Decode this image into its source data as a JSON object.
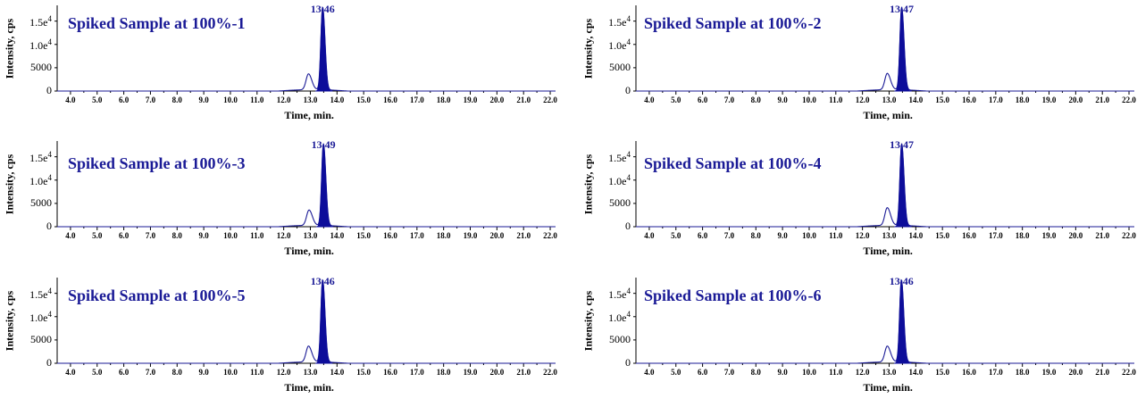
{
  "colors": {
    "trace": "#1a1a96",
    "fill": "#0d0d9a",
    "axis": "#000000",
    "baseline": "#6b6b6b"
  },
  "chart_data": [
    {
      "type": "line",
      "title": "Spiked Sample at 100%-1",
      "xlabel": "Time, min.",
      "ylabel": "Intensity, cps",
      "xlim": [
        3.5,
        22.2
      ],
      "ylim": [
        0,
        18000
      ],
      "x_ticks": [
        "4.0",
        "5.0",
        "6.0",
        "7.0",
        "8.0",
        "9.0",
        "10.0",
        "11.0",
        "12.0",
        "13.0",
        "14.0",
        "15.0",
        "16.0",
        "17.0",
        "18.0",
        "19.0",
        "20.0",
        "21.0",
        "22.0"
      ],
      "y_ticks": [
        {
          "value": 0,
          "label": "0"
        },
        {
          "value": 5000,
          "label": "5000"
        },
        {
          "value": 10000,
          "label": "1.0e",
          "exp": "4"
        },
        {
          "value": 15000,
          "label": "1.5e",
          "exp": "4"
        }
      ],
      "peak_label": "13.46",
      "series": [
        {
          "peak_rt": 13.46,
          "peak_height": 17800,
          "peak_sigma": 0.065,
          "filled": true
        },
        {
          "peak_rt": 12.93,
          "peak_height": 3400,
          "peak_sigma": 0.09,
          "filled": false
        }
      ]
    },
    {
      "type": "line",
      "title": "Spiked Sample at 100%-2",
      "xlabel": "Time, min.",
      "ylabel": "Intensity, cps",
      "xlim": [
        3.5,
        22.2
      ],
      "ylim": [
        0,
        18000
      ],
      "x_ticks": [
        "4.0",
        "5.0",
        "6.0",
        "7.0",
        "8.0",
        "9.0",
        "10.0",
        "11.0",
        "12.0",
        "13.0",
        "14.0",
        "15.0",
        "16.0",
        "17.0",
        "18.0",
        "19.0",
        "20.0",
        "21.0",
        "22.0"
      ],
      "y_ticks": [
        {
          "value": 0,
          "label": "0"
        },
        {
          "value": 5000,
          "label": "5000"
        },
        {
          "value": 10000,
          "label": "1.0e",
          "exp": "4"
        },
        {
          "value": 15000,
          "label": "1.5e",
          "exp": "4"
        }
      ],
      "peak_label": "13.47",
      "series": [
        {
          "peak_rt": 13.47,
          "peak_height": 17800,
          "peak_sigma": 0.065,
          "filled": true
        },
        {
          "peak_rt": 12.93,
          "peak_height": 3500,
          "peak_sigma": 0.09,
          "filled": false
        }
      ]
    },
    {
      "type": "line",
      "title": "Spiked Sample at 100%-3",
      "xlabel": "Time, min.",
      "ylabel": "Intensity, cps",
      "xlim": [
        3.5,
        22.2
      ],
      "ylim": [
        0,
        18000
      ],
      "x_ticks": [
        "4.0",
        "5.0",
        "6.0",
        "7.0",
        "8.0",
        "9.0",
        "10.0",
        "11.0",
        "12.0",
        "13.0",
        "14.0",
        "15.0",
        "16.0",
        "17.0",
        "18.0",
        "19.0",
        "20.0",
        "21.0",
        "22.0"
      ],
      "y_ticks": [
        {
          "value": 0,
          "label": "0"
        },
        {
          "value": 5000,
          "label": "5000"
        },
        {
          "value": 10000,
          "label": "1.0e",
          "exp": "4"
        },
        {
          "value": 15000,
          "label": "1.5e",
          "exp": "4"
        }
      ],
      "peak_label": "13.49",
      "series": [
        {
          "peak_rt": 13.49,
          "peak_height": 17600,
          "peak_sigma": 0.065,
          "filled": true
        },
        {
          "peak_rt": 12.95,
          "peak_height": 3300,
          "peak_sigma": 0.09,
          "filled": false
        }
      ]
    },
    {
      "type": "line",
      "title": "Spiked Sample at 100%-4",
      "xlabel": "Time, min.",
      "ylabel": "Intensity, cps",
      "xlim": [
        3.5,
        22.2
      ],
      "ylim": [
        0,
        18000
      ],
      "x_ticks": [
        "4.0",
        "5.0",
        "6.0",
        "7.0",
        "8.0",
        "9.0",
        "10.0",
        "11.0",
        "12.0",
        "13.0",
        "14.0",
        "15.0",
        "16.0",
        "17.0",
        "18.0",
        "19.0",
        "20.0",
        "21.0",
        "22.0"
      ],
      "y_ticks": [
        {
          "value": 0,
          "label": "0"
        },
        {
          "value": 5000,
          "label": "5000"
        },
        {
          "value": 10000,
          "label": "1.0e",
          "exp": "4"
        },
        {
          "value": 15000,
          "label": "1.5e",
          "exp": "4"
        }
      ],
      "peak_label": "13.47",
      "series": [
        {
          "peak_rt": 13.47,
          "peak_height": 17600,
          "peak_sigma": 0.065,
          "filled": true
        },
        {
          "peak_rt": 12.93,
          "peak_height": 3800,
          "peak_sigma": 0.09,
          "filled": false
        }
      ]
    },
    {
      "type": "line",
      "title": "Spiked Sample at 100%-5",
      "xlabel": "Time, min.",
      "ylabel": "Intensity, cps",
      "xlim": [
        3.5,
        22.2
      ],
      "ylim": [
        0,
        18000
      ],
      "x_ticks": [
        "4.0",
        "5.0",
        "6.0",
        "7.0",
        "8.0",
        "9.0",
        "10.0",
        "11.0",
        "12.0",
        "13.0",
        "14.0",
        "15.0",
        "16.0",
        "17.0",
        "18.0",
        "19.0",
        "20.0",
        "21.0",
        "22.0"
      ],
      "y_ticks": [
        {
          "value": 0,
          "label": "0"
        },
        {
          "value": 5000,
          "label": "5000"
        },
        {
          "value": 10000,
          "label": "1.0e",
          "exp": "4"
        },
        {
          "value": 15000,
          "label": "1.5e",
          "exp": "4"
        }
      ],
      "peak_label": "13.46",
      "series": [
        {
          "peak_rt": 13.46,
          "peak_height": 17700,
          "peak_sigma": 0.065,
          "filled": true
        },
        {
          "peak_rt": 12.93,
          "peak_height": 3400,
          "peak_sigma": 0.09,
          "filled": false
        }
      ]
    },
    {
      "type": "line",
      "title": "Spiked Sample at 100%-6",
      "xlabel": "Time, min.",
      "ylabel": "Intensity, cps",
      "xlim": [
        3.5,
        22.2
      ],
      "ylim": [
        0,
        18000
      ],
      "x_ticks": [
        "4.0",
        "5.0",
        "6.0",
        "7.0",
        "8.0",
        "9.0",
        "10.0",
        "11.0",
        "12.0",
        "13.0",
        "14.0",
        "15.0",
        "16.0",
        "17.0",
        "18.0",
        "19.0",
        "20.0",
        "21.0",
        "22.0"
      ],
      "y_ticks": [
        {
          "value": 0,
          "label": "0"
        },
        {
          "value": 5000,
          "label": "5000"
        },
        {
          "value": 10000,
          "label": "1.0e",
          "exp": "4"
        },
        {
          "value": 15000,
          "label": "1.5e",
          "exp": "4"
        }
      ],
      "peak_label": "13.46",
      "series": [
        {
          "peak_rt": 13.46,
          "peak_height": 17700,
          "peak_sigma": 0.065,
          "filled": true
        },
        {
          "peak_rt": 12.93,
          "peak_height": 3400,
          "peak_sigma": 0.09,
          "filled": false
        }
      ]
    }
  ]
}
